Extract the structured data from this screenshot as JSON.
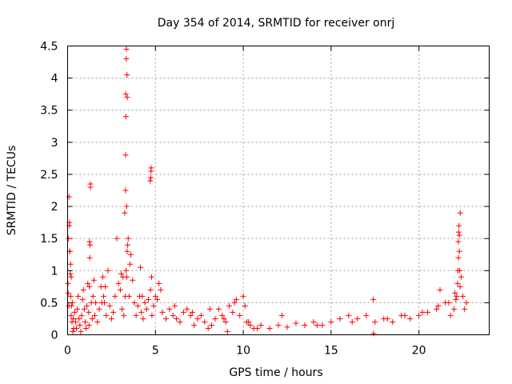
{
  "chart_data": {
    "type": "scatter",
    "title": "Day 354 of 2014, SRMTID for receiver onrj",
    "xlabel": "GPS time / hours",
    "ylabel": "SRMTID / TECUs",
    "xlim": [
      0,
      24
    ],
    "ylim": [
      0,
      4.5
    ],
    "x_ticks": [
      0,
      5,
      10,
      15,
      20
    ],
    "x_tick_labels": [
      "0",
      "5",
      "10",
      "15",
      "20"
    ],
    "y_ticks": [
      0,
      0.5,
      1,
      1.5,
      2,
      2.5,
      3,
      3.5,
      4,
      4.5
    ],
    "y_tick_labels": [
      "0",
      "0.5",
      "1",
      "1.5",
      "2",
      "2.5",
      "3",
      "3.5",
      "4",
      "4.5"
    ],
    "grid": true,
    "marker": "+",
    "series": [
      {
        "name": "SRMTID",
        "color": "#ff0000",
        "x": [
          0.02,
          0.05,
          0.08,
          0.1,
          0.12,
          0.15,
          0.18,
          0.2,
          0.22,
          0.25,
          0.3,
          0.35,
          0.4,
          0.45,
          0.5,
          0.55,
          0.6,
          0.65,
          0.7,
          0.75,
          0.8,
          0.85,
          0.9,
          0.95,
          1.0,
          1.05,
          1.1,
          1.15,
          1.2,
          1.25,
          1.3,
          1.35,
          1.4,
          1.45,
          1.5,
          1.55,
          1.6,
          1.7,
          1.8,
          1.9,
          2.0,
          2.1,
          2.2,
          2.3,
          2.4,
          2.5,
          2.6,
          2.7,
          2.8,
          2.9,
          3.0,
          3.1,
          3.2,
          3.25,
          3.3,
          3.32,
          3.35,
          3.38,
          3.4,
          3.45,
          3.5,
          3.55,
          3.6,
          3.7,
          3.8,
          3.9,
          4.0,
          4.1,
          4.2,
          4.3,
          4.4,
          4.5,
          4.6,
          4.7,
          4.75,
          4.8,
          4.9,
          5.0,
          5.2,
          5.4,
          5.6,
          5.8,
          6.0,
          6.2,
          6.4,
          6.6,
          6.8,
          7.0,
          7.2,
          7.4,
          7.6,
          7.8,
          8.0,
          8.2,
          8.4,
          8.6,
          8.8,
          9.0,
          9.2,
          9.4,
          9.6,
          9.8,
          10.0,
          10.2,
          10.4,
          10.6,
          10.8,
          11.0,
          11.5,
          12.0,
          12.5,
          13.0,
          13.5,
          14.0,
          14.5,
          15.0,
          15.5,
          16.0,
          16.5,
          17.0,
          17.5,
          18.0,
          18.5,
          19.0,
          19.5,
          20.0,
          20.5,
          21.0,
          21.2,
          21.5,
          21.8,
          22.0,
          22.1,
          22.2,
          22.25,
          22.3,
          22.35,
          22.4,
          22.5,
          22.6,
          22.7,
          0.03,
          0.07,
          0.11,
          0.13,
          0.17,
          0.21,
          0.27,
          0.33,
          1.22,
          1.24,
          1.26,
          1.28,
          1.3,
          3.28,
          3.3,
          3.31,
          3.33,
          3.34,
          3.36,
          3.37,
          3.39,
          3.42,
          4.72,
          4.74,
          4.76,
          4.78,
          22.22,
          22.24,
          22.26,
          22.28,
          22.3,
          22.32,
          22.34,
          17.4,
          17.42,
          9.1,
          10.1,
          8.9,
          1.95,
          2.05,
          2.15,
          3.05,
          3.15,
          4.15,
          4.25,
          5.1,
          5.3,
          6.1,
          7.1,
          8.1,
          9.5,
          10.3,
          12.2,
          14.2,
          16.2,
          18.2,
          19.2,
          20.2,
          21.1,
          21.7,
          22.05,
          22.15
        ],
        "y": [
          0.8,
          1.5,
          2.15,
          1.7,
          1.3,
          0.95,
          0.6,
          0.3,
          0.45,
          0.2,
          0.05,
          0.1,
          0.35,
          0.2,
          0.1,
          0.4,
          0.6,
          0.25,
          0.15,
          0.05,
          0.3,
          0.55,
          0.7,
          0.4,
          0.2,
          0.1,
          0.45,
          0.8,
          0.35,
          1.45,
          2.35,
          0.5,
          0.25,
          0.6,
          0.85,
          0.3,
          0.5,
          0.2,
          0.4,
          0.75,
          0.9,
          0.5,
          0.3,
          1.0,
          0.45,
          0.25,
          0.35,
          0.6,
          1.5,
          0.8,
          0.7,
          0.4,
          0.3,
          1.9,
          2.8,
          3.4,
          4.45,
          4.05,
          3.7,
          1.5,
          0.6,
          1.1,
          1.25,
          0.85,
          0.5,
          0.3,
          0.45,
          0.6,
          0.35,
          0.25,
          0.5,
          0.4,
          0.55,
          2.4,
          2.55,
          0.3,
          0.45,
          0.6,
          0.8,
          0.35,
          0.25,
          0.4,
          0.3,
          0.25,
          0.2,
          0.35,
          0.4,
          0.3,
          0.15,
          0.25,
          0.3,
          0.2,
          0.1,
          0.15,
          0.25,
          0.4,
          0.3,
          0.2,
          0.45,
          0.35,
          0.55,
          0.3,
          0.6,
          0.2,
          0.15,
          0.1,
          0.1,
          0.15,
          0.1,
          0.15,
          0.12,
          0.18,
          0.15,
          0.2,
          0.15,
          0.2,
          0.25,
          0.3,
          0.25,
          0.3,
          0.2,
          0.25,
          0.2,
          0.3,
          0.25,
          0.3,
          0.35,
          0.4,
          0.7,
          0.5,
          0.3,
          0.4,
          0.55,
          0.8,
          1.2,
          1.55,
          1.9,
          0.9,
          0.6,
          0.4,
          0.5,
          0.65,
          0.45,
          1.75,
          1.3,
          1.1,
          0.9,
          0.5,
          0.25,
          0.15,
          0.75,
          1.2,
          1.4,
          2.3,
          0.6,
          2.25,
          3.75,
          1.0,
          4.3,
          2.0,
          0.9,
          1.3,
          1.4,
          0.7,
          2.45,
          2.6,
          0.9,
          1.0,
          1.45,
          1.6,
          1.7,
          1.3,
          1.0,
          0.75,
          0.55,
          0.02,
          0.05,
          0.45,
          0.25,
          0.5,
          0.6,
          0.75,
          0.95,
          0.9,
          1.05,
          0.6,
          0.55,
          0.7,
          0.45,
          0.35,
          0.4,
          0.5,
          0.2,
          0.3,
          0.15,
          0.2,
          0.25,
          0.3,
          0.35,
          0.45,
          0.5,
          0.65,
          0.6
        ]
      }
    ]
  }
}
